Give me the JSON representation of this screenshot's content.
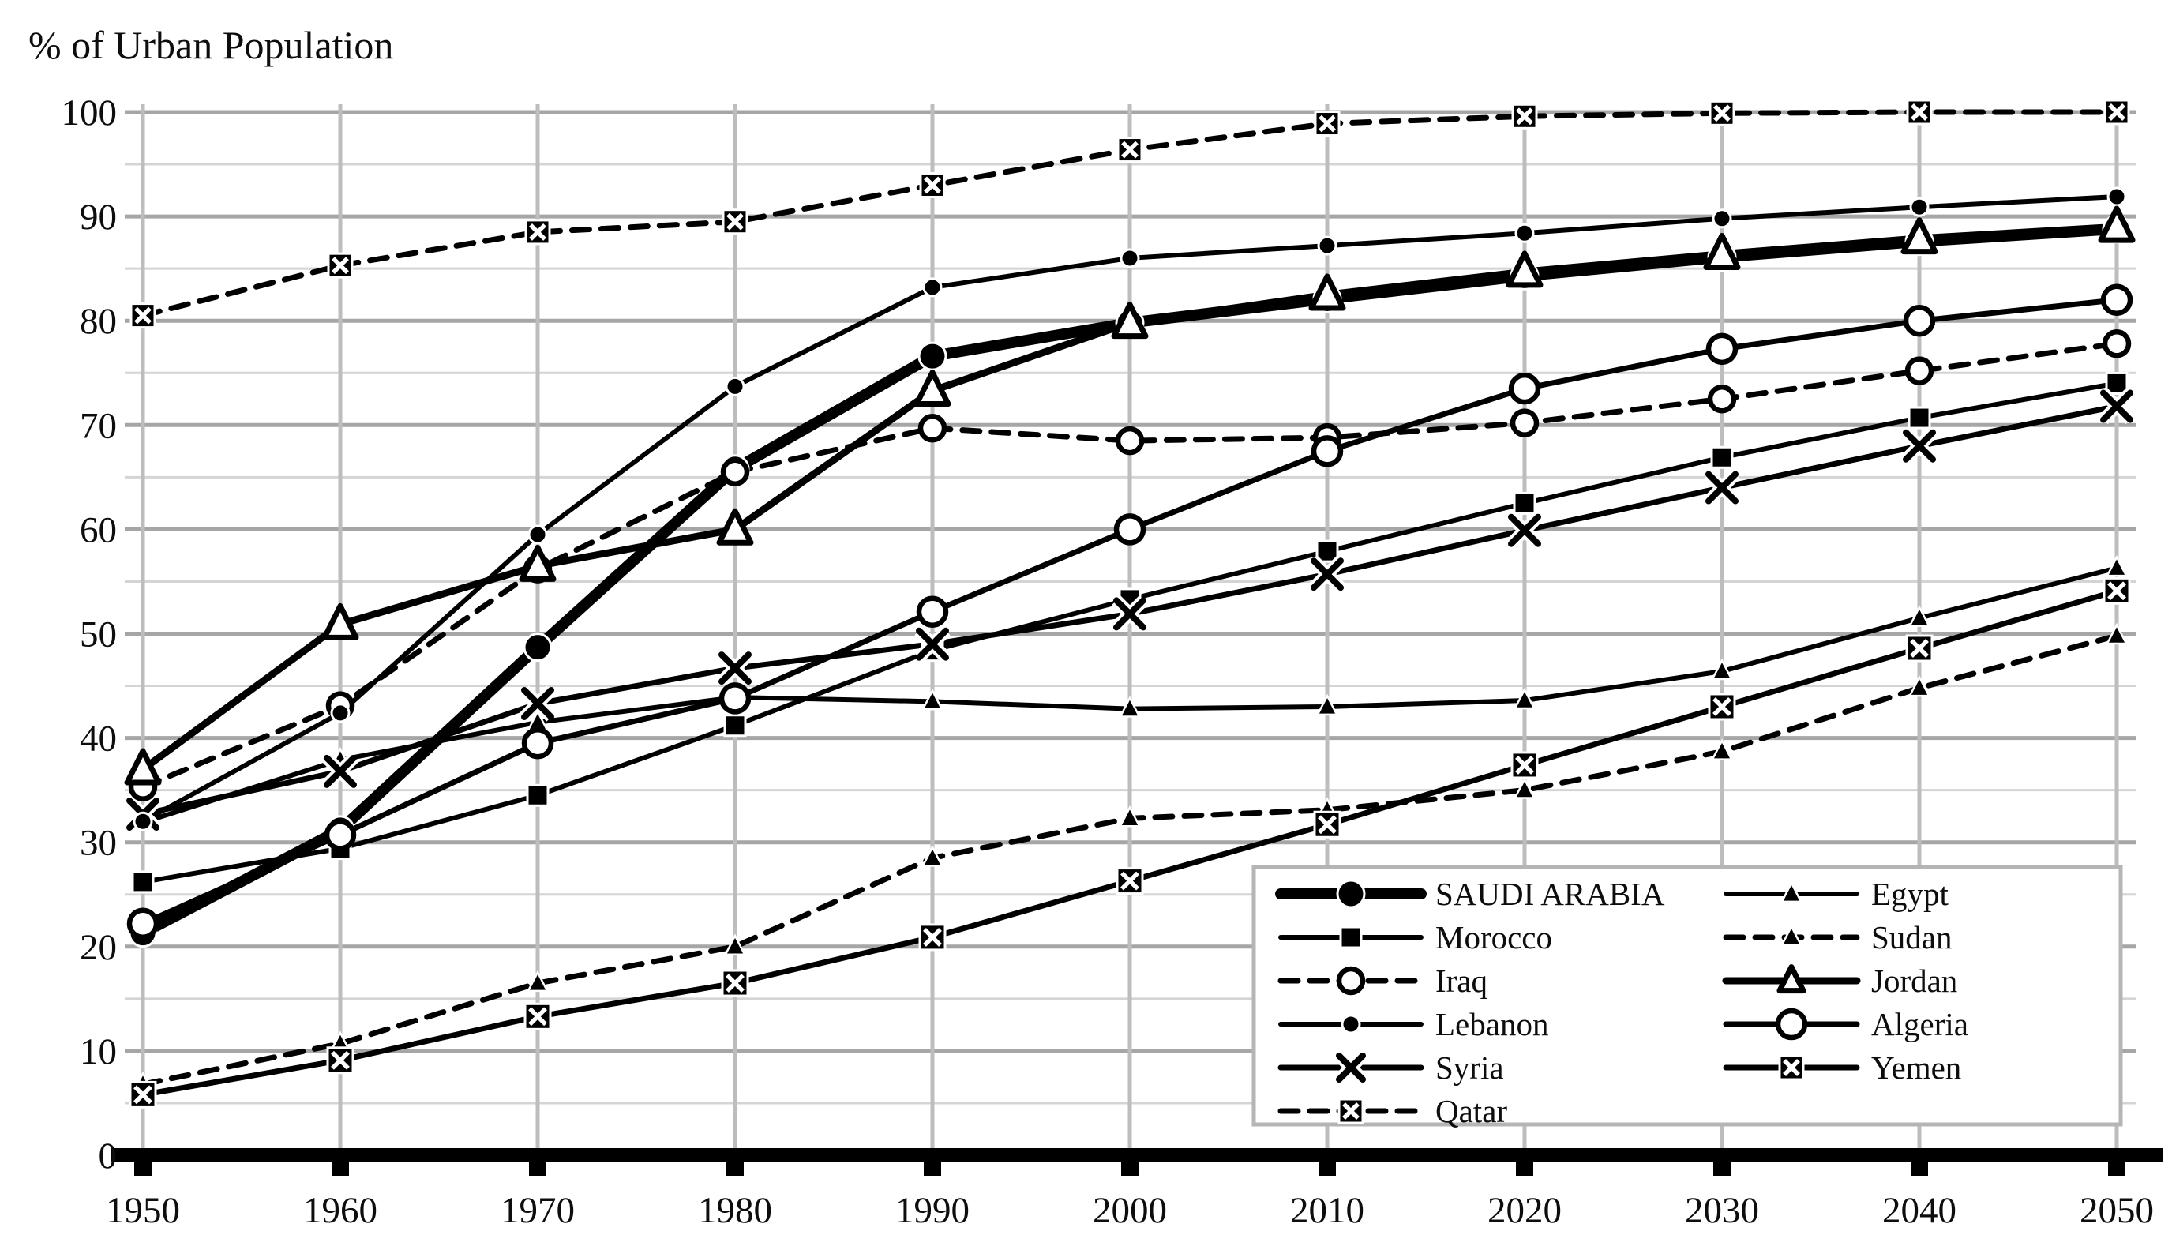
{
  "chart": {
    "title": "% of Urban Population",
    "type": "line",
    "grid": true,
    "legend_position": "bottom-right",
    "ylim": [
      0,
      100
    ],
    "y_ticks": [
      0,
      10,
      20,
      30,
      40,
      50,
      60,
      70,
      80,
      90,
      100
    ],
    "x_ticks": [
      1950,
      1960,
      1970,
      1980,
      1990,
      2000,
      2010,
      2020,
      2030,
      2040,
      2050
    ],
    "colors": {
      "line": "#000000",
      "grid_minor": "#d4d4d4",
      "grid_major": "#a6a6a6",
      "grid_vertical": "#bdbdbd",
      "axis": "#000000",
      "legend_border": "#b5b5b5",
      "text": "#0d0d0d",
      "background": "#ffffff"
    },
    "chart_data": {
      "type": "line",
      "x": [
        1950,
        1960,
        1970,
        1980,
        1990,
        2000,
        2010,
        2020,
        2030,
        2040,
        2050
      ],
      "series": [
        {
          "name": "SAUDI ARABIA",
          "marker": "dot-lg",
          "dash": null,
          "width": 14,
          "size": 17,
          "values": [
            21.3,
            31.2,
            48.7,
            65.8,
            76.6,
            79.8,
            82.1,
            84.3,
            86.1,
            87.6,
            88.8
          ]
        },
        {
          "name": "Morocco",
          "marker": "square",
          "dash": null,
          "width": 6,
          "size": 26,
          "values": [
            26.2,
            29.4,
            34.5,
            41.2,
            48.4,
            53.3,
            57.9,
            62.5,
            66.9,
            70.7,
            74.0
          ]
        },
        {
          "name": "Iraq",
          "marker": "circle-open",
          "dash": [
            22,
            15
          ],
          "width": 7,
          "size": 15,
          "values": [
            35.3,
            43.1,
            56.2,
            65.5,
            69.7,
            68.5,
            68.8,
            70.2,
            72.5,
            75.2,
            77.8
          ]
        },
        {
          "name": "Lebanon",
          "marker": "dot-sm",
          "dash": null,
          "width": 6,
          "size": 11,
          "values": [
            32.0,
            42.4,
            59.5,
            73.7,
            83.2,
            86.0,
            87.2,
            88.4,
            89.8,
            90.9,
            91.9
          ]
        },
        {
          "name": "Syria",
          "marker": "x",
          "dash": null,
          "width": 7,
          "size": 34,
          "values": [
            32.7,
            36.8,
            43.3,
            46.7,
            49.0,
            51.9,
            55.7,
            59.9,
            64.0,
            68.0,
            71.8
          ]
        },
        {
          "name": "Qatar",
          "marker": "boxx",
          "dash": [
            22,
            15
          ],
          "width": 7,
          "size": 30,
          "values": [
            80.5,
            85.3,
            88.5,
            89.5,
            93.0,
            96.4,
            98.9,
            99.6,
            99.9,
            100.0,
            100.0
          ]
        },
        {
          "name": "Egypt",
          "marker": "tri-sm",
          "dash": null,
          "width": 6,
          "size": 22,
          "values": [
            31.9,
            37.9,
            41.5,
            43.9,
            43.5,
            42.8,
            43.0,
            43.6,
            46.4,
            51.5,
            56.3
          ]
        },
        {
          "name": "Sudan",
          "marker": "tri-sm",
          "dash": [
            22,
            15
          ],
          "width": 7,
          "size": 22,
          "values": [
            6.8,
            10.7,
            16.5,
            20.0,
            28.5,
            32.3,
            33.1,
            35.0,
            38.7,
            44.8,
            49.8
          ]
        },
        {
          "name": "Jordan",
          "marker": "tri-open",
          "dash": null,
          "width": 9,
          "size": 40,
          "values": [
            37.0,
            50.9,
            56.5,
            60.0,
            73.3,
            79.8,
            82.5,
            84.7,
            86.4,
            87.9,
            89.0
          ]
        },
        {
          "name": "Algeria",
          "marker": "circle-open",
          "dash": null,
          "width": 7,
          "size": 17,
          "values": [
            22.2,
            30.7,
            39.5,
            43.8,
            52.1,
            60.0,
            67.5,
            73.5,
            77.3,
            80.0,
            82.0
          ]
        },
        {
          "name": "Yemen",
          "marker": "boxx",
          "dash": null,
          "width": 7,
          "size": 32,
          "values": [
            5.8,
            9.1,
            13.3,
            16.5,
            20.9,
            26.3,
            31.7,
            37.4,
            43.0,
            48.6,
            54.1
          ]
        }
      ],
      "marker_draw_order": [
        "SAUDI ARABIA",
        "Morocco",
        "Egypt",
        "Sudan",
        "Syria",
        "Iraq",
        "Lebanon",
        "Jordan",
        "Algeria",
        "Qatar",
        "Yemen"
      ],
      "legend_columns": [
        [
          "SAUDI ARABIA",
          "Morocco",
          "Iraq",
          "Lebanon",
          "Syria",
          "Qatar"
        ],
        [
          "Egypt",
          "Sudan",
          "Jordan",
          "Algeria",
          "Yemen"
        ]
      ],
      "title": "% of Urban Population",
      "xlabel": "",
      "ylabel": ""
    }
  }
}
